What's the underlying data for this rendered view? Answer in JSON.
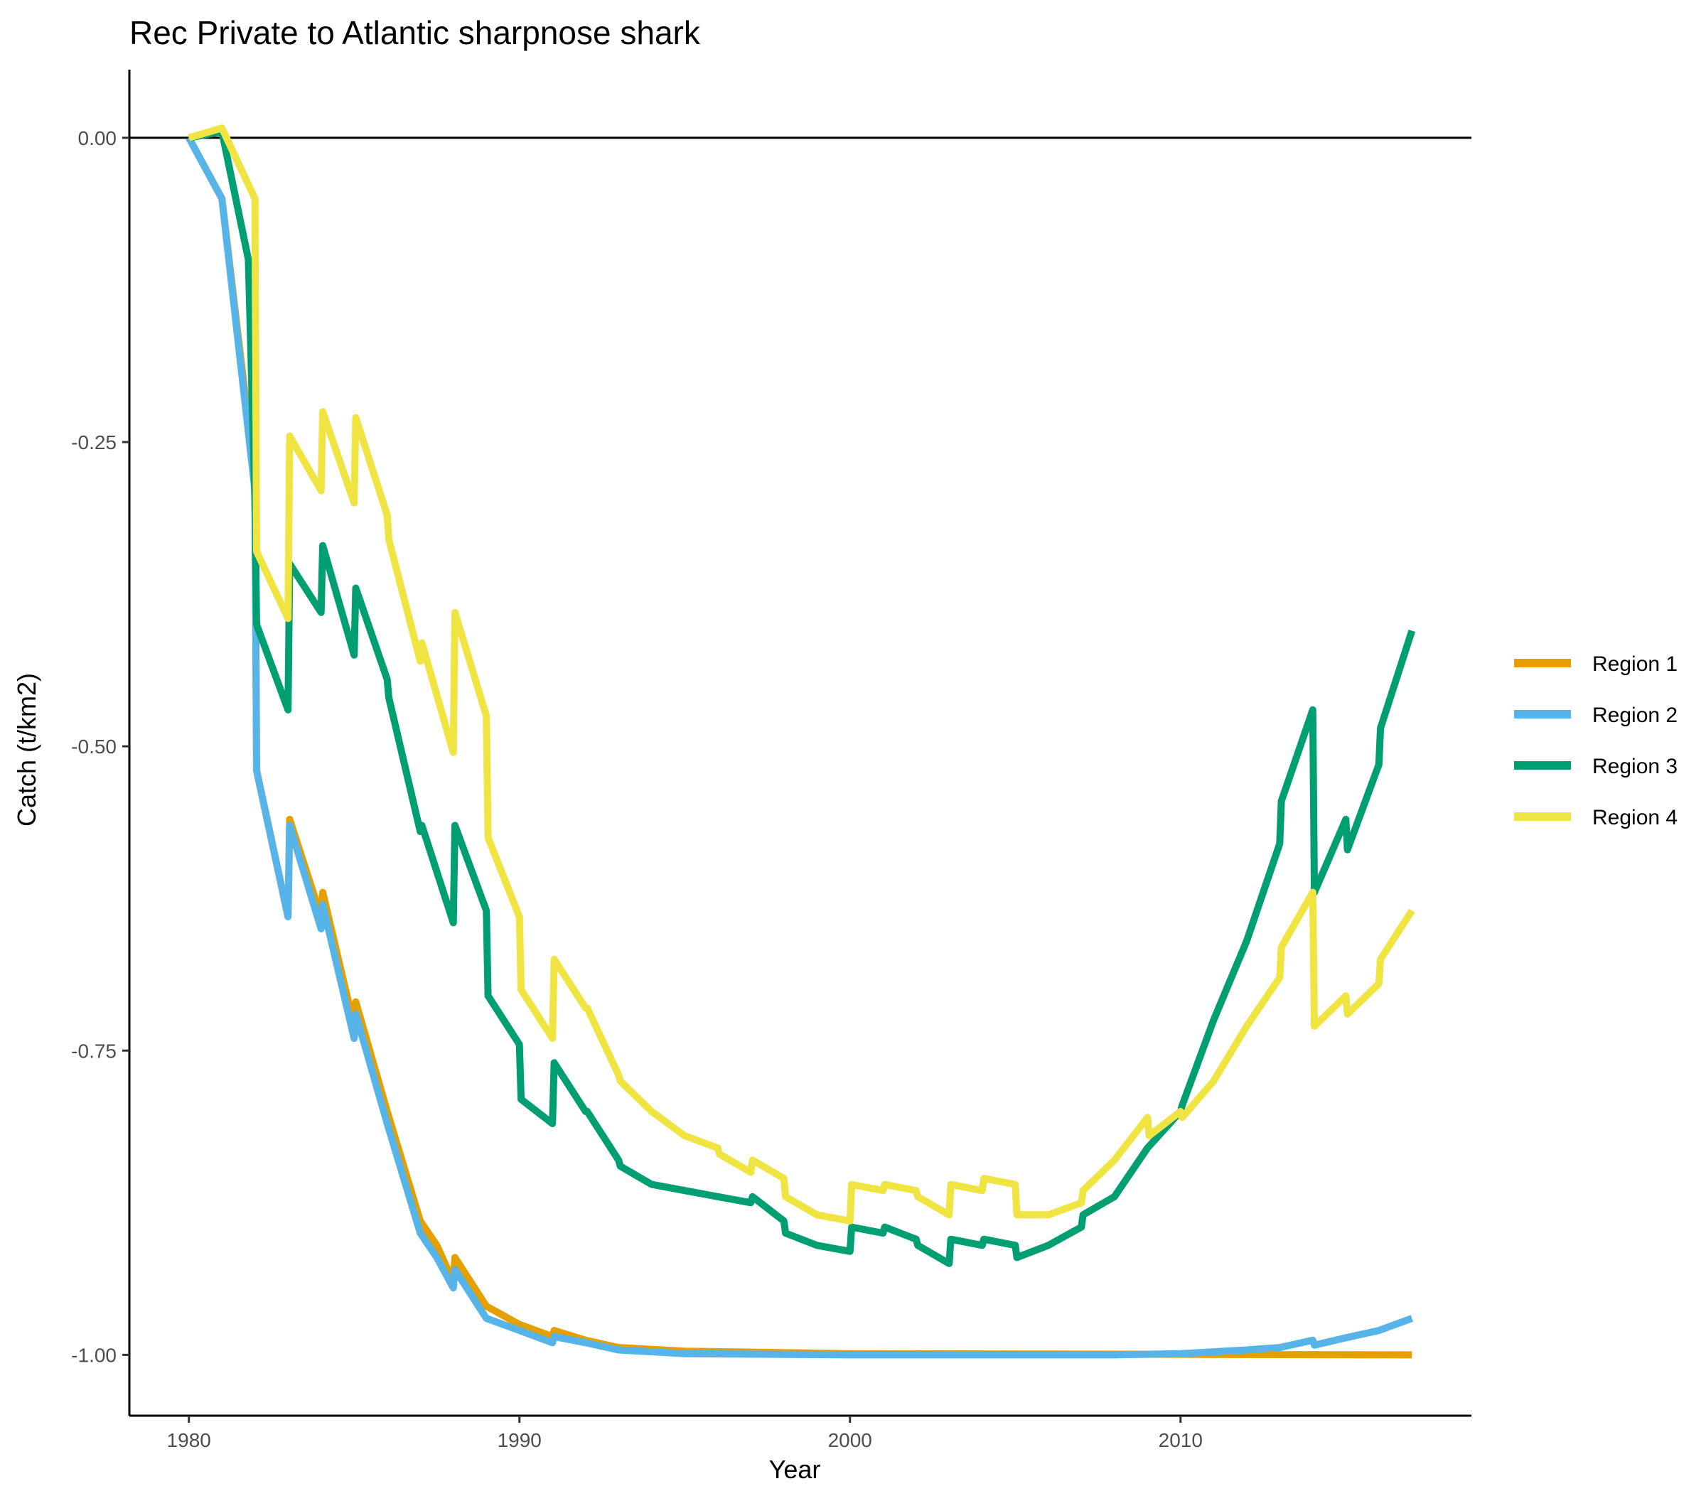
{
  "chart_data": {
    "type": "line",
    "title": "Rec Private to Atlantic sharpnose shark",
    "xlabel": "Year",
    "ylabel": "Catch (t/km2)",
    "xlim": [
      1978.2,
      2018.8
    ],
    "ylim": [
      -1.05,
      0.056
    ],
    "x_ticks": [
      1980,
      1990,
      2000,
      2010
    ],
    "x_tick_labels": [
      "1980",
      "1990",
      "2000",
      "2010"
    ],
    "y_ticks": [
      0,
      -0.25,
      -0.5,
      -0.75,
      -1
    ],
    "y_tick_labels": [
      "0.00",
      "-0.25",
      "-0.50",
      "-0.75",
      "-1.00"
    ],
    "grid": false,
    "zero_line": true,
    "legend_position": "right",
    "series": [
      {
        "name": "Region 1",
        "color": "#E69F00",
        "points": [
          [
            1980,
            0
          ],
          [
            1981,
            -0.05
          ],
          [
            1982,
            -0.28
          ],
          [
            1982.05,
            -0.52
          ],
          [
            1983,
            -0.64
          ],
          [
            1983.05,
            -0.56
          ],
          [
            1984,
            -0.64
          ],
          [
            1984.05,
            -0.62
          ],
          [
            1985,
            -0.73
          ],
          [
            1985.05,
            -0.71
          ],
          [
            1986,
            -0.8
          ],
          [
            1987,
            -0.89
          ],
          [
            1987.5,
            -0.91
          ],
          [
            1988,
            -0.94
          ],
          [
            1988.05,
            -0.92
          ],
          [
            1989,
            -0.96
          ],
          [
            1990,
            -0.975
          ],
          [
            1991,
            -0.985
          ],
          [
            1991.05,
            -0.98
          ],
          [
            1992,
            -0.988
          ],
          [
            1993,
            -0.994
          ],
          [
            1995,
            -0.997
          ],
          [
            2000,
            -0.999
          ],
          [
            2017,
            -1.0
          ]
        ]
      },
      {
        "name": "Region 2",
        "color": "#56B4E9",
        "points": [
          [
            1980,
            0
          ],
          [
            1981,
            -0.05
          ],
          [
            1982,
            -0.29
          ],
          [
            1982.05,
            -0.52
          ],
          [
            1983,
            -0.64
          ],
          [
            1983.05,
            -0.565
          ],
          [
            1984,
            -0.65
          ],
          [
            1984.05,
            -0.63
          ],
          [
            1985,
            -0.74
          ],
          [
            1985.05,
            -0.72
          ],
          [
            1986,
            -0.81
          ],
          [
            1987,
            -0.9
          ],
          [
            1987.5,
            -0.92
          ],
          [
            1988,
            -0.945
          ],
          [
            1988.05,
            -0.93
          ],
          [
            1989,
            -0.97
          ],
          [
            1990,
            -0.98
          ],
          [
            1991,
            -0.99
          ],
          [
            1991.05,
            -0.985
          ],
          [
            1992,
            -0.99
          ],
          [
            1993,
            -0.996
          ],
          [
            1995,
            -0.999
          ],
          [
            2000,
            -1.0
          ],
          [
            2008,
            -1.0
          ],
          [
            2010,
            -0.999
          ],
          [
            2012,
            -0.996
          ],
          [
            2013,
            -0.994
          ],
          [
            2014,
            -0.988
          ],
          [
            2014.05,
            -0.992
          ],
          [
            2015,
            -0.986
          ],
          [
            2016,
            -0.98
          ],
          [
            2017,
            -0.97
          ]
        ]
      },
      {
        "name": "Region 3",
        "color": "#009E73",
        "points": [
          [
            1980,
            0
          ],
          [
            1981,
            0.005
          ],
          [
            1981.8,
            -0.1
          ],
          [
            1982,
            -0.3
          ],
          [
            1982.05,
            -0.4
          ],
          [
            1983,
            -0.47
          ],
          [
            1983.05,
            -0.35
          ],
          [
            1984,
            -0.39
          ],
          [
            1984.05,
            -0.335
          ],
          [
            1985,
            -0.425
          ],
          [
            1985.05,
            -0.37
          ],
          [
            1986,
            -0.445
          ],
          [
            1986.05,
            -0.46
          ],
          [
            1987,
            -0.57
          ],
          [
            1987.05,
            -0.565
          ],
          [
            1988,
            -0.645
          ],
          [
            1988.05,
            -0.565
          ],
          [
            1989,
            -0.635
          ],
          [
            1989.05,
            -0.705
          ],
          [
            1990,
            -0.745
          ],
          [
            1990.05,
            -0.79
          ],
          [
            1991,
            -0.81
          ],
          [
            1991.05,
            -0.76
          ],
          [
            1992,
            -0.8
          ],
          [
            1992.05,
            -0.8
          ],
          [
            1993,
            -0.84
          ],
          [
            1993.05,
            -0.845
          ],
          [
            1994,
            -0.86
          ],
          [
            1995,
            -0.865
          ],
          [
            1996,
            -0.87
          ],
          [
            1997,
            -0.875
          ],
          [
            1997.05,
            -0.87
          ],
          [
            1998,
            -0.89
          ],
          [
            1998.05,
            -0.9
          ],
          [
            1999,
            -0.91
          ],
          [
            2000,
            -0.915
          ],
          [
            2000.05,
            -0.895
          ],
          [
            2001,
            -0.9
          ],
          [
            2001.05,
            -0.895
          ],
          [
            2002,
            -0.905
          ],
          [
            2002.05,
            -0.91
          ],
          [
            2003,
            -0.925
          ],
          [
            2003.05,
            -0.905
          ],
          [
            2004,
            -0.91
          ],
          [
            2004.05,
            -0.905
          ],
          [
            2005,
            -0.91
          ],
          [
            2005.05,
            -0.92
          ],
          [
            2006,
            -0.91
          ],
          [
            2007,
            -0.895
          ],
          [
            2007.05,
            -0.885
          ],
          [
            2008,
            -0.87
          ],
          [
            2009,
            -0.83
          ],
          [
            2010,
            -0.8
          ],
          [
            2010.05,
            -0.795
          ],
          [
            2011,
            -0.725
          ],
          [
            2012,
            -0.66
          ],
          [
            2013,
            -0.58
          ],
          [
            2013.05,
            -0.545
          ],
          [
            2014,
            -0.47
          ],
          [
            2014.05,
            -0.62
          ],
          [
            2015,
            -0.56
          ],
          [
            2015.05,
            -0.585
          ],
          [
            2016,
            -0.515
          ],
          [
            2016.05,
            -0.485
          ],
          [
            2017,
            -0.405
          ]
        ]
      },
      {
        "name": "Region 4",
        "color": "#F0E442",
        "points": [
          [
            1980,
            0
          ],
          [
            1981,
            0.008
          ],
          [
            1982,
            -0.05
          ],
          [
            1982.05,
            -0.34
          ],
          [
            1983,
            -0.395
          ],
          [
            1983.05,
            -0.245
          ],
          [
            1984,
            -0.29
          ],
          [
            1984.05,
            -0.225
          ],
          [
            1985,
            -0.3
          ],
          [
            1985.05,
            -0.23
          ],
          [
            1986,
            -0.31
          ],
          [
            1986.05,
            -0.33
          ],
          [
            1987,
            -0.43
          ],
          [
            1987.05,
            -0.415
          ],
          [
            1988,
            -0.505
          ],
          [
            1988.05,
            -0.39
          ],
          [
            1989,
            -0.475
          ],
          [
            1989.05,
            -0.575
          ],
          [
            1990,
            -0.64
          ],
          [
            1990.05,
            -0.7
          ],
          [
            1991,
            -0.74
          ],
          [
            1991.05,
            -0.675
          ],
          [
            1992,
            -0.715
          ],
          [
            1992.05,
            -0.715
          ],
          [
            1993,
            -0.77
          ],
          [
            1993.05,
            -0.775
          ],
          [
            1994,
            -0.8
          ],
          [
            1995,
            -0.82
          ],
          [
            1996,
            -0.83
          ],
          [
            1996.05,
            -0.835
          ],
          [
            1997,
            -0.85
          ],
          [
            1997.05,
            -0.84
          ],
          [
            1998,
            -0.855
          ],
          [
            1998.05,
            -0.87
          ],
          [
            1999,
            -0.885
          ],
          [
            2000,
            -0.89
          ],
          [
            2000.05,
            -0.86
          ],
          [
            2001,
            -0.865
          ],
          [
            2001.05,
            -0.86
          ],
          [
            2002,
            -0.865
          ],
          [
            2002.05,
            -0.87
          ],
          [
            2003,
            -0.885
          ],
          [
            2003.05,
            -0.86
          ],
          [
            2004,
            -0.865
          ],
          [
            2004.05,
            -0.855
          ],
          [
            2005,
            -0.86
          ],
          [
            2005.05,
            -0.885
          ],
          [
            2006,
            -0.885
          ],
          [
            2007,
            -0.875
          ],
          [
            2007.05,
            -0.865
          ],
          [
            2008,
            -0.84
          ],
          [
            2009,
            -0.805
          ],
          [
            2009.05,
            -0.82
          ],
          [
            2010,
            -0.8
          ],
          [
            2010.05,
            -0.805
          ],
          [
            2011,
            -0.775
          ],
          [
            2012,
            -0.73
          ],
          [
            2013,
            -0.69
          ],
          [
            2013.05,
            -0.665
          ],
          [
            2014,
            -0.62
          ],
          [
            2014.05,
            -0.73
          ],
          [
            2015,
            -0.705
          ],
          [
            2015.05,
            -0.72
          ],
          [
            2016,
            -0.695
          ],
          [
            2016.05,
            -0.675
          ],
          [
            2017,
            -0.635
          ]
        ]
      }
    ]
  }
}
